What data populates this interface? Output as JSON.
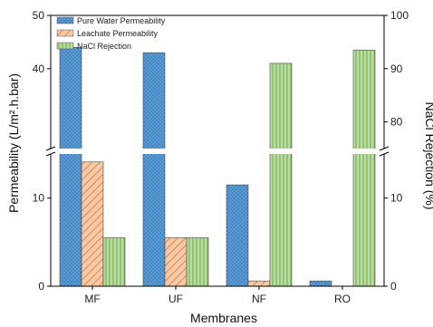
{
  "chart_data": {
    "type": "bar",
    "categories": [
      "MF",
      "UF",
      "NF",
      "RO"
    ],
    "series": [
      {
        "name": "Pure Water Permeability",
        "axis": "left",
        "values": [
          44,
          43,
          11.5,
          0.6
        ],
        "color": "#5b9bd5",
        "pattern": "dots"
      },
      {
        "name": "Leachate Permeability",
        "axis": "left",
        "values": [
          14.1,
          5.5,
          0.6,
          null
        ],
        "color": "#f4b183",
        "pattern": "diag"
      },
      {
        "name": "NaCl Rejection",
        "axis": "right",
        "values": [
          5.5,
          5.5,
          91,
          93.5
        ],
        "color": "#a9d18e",
        "pattern": "vert"
      }
    ],
    "xlabel": "Membranes",
    "ylabel": "Permeability (L/m².h.bar)",
    "ylabel_right": "NaCl Rejection (%)",
    "y_left_segments": [
      {
        "range": [
          0,
          15
        ],
        "ticks": [
          0,
          10
        ]
      },
      {
        "range": [
          25,
          50
        ],
        "ticks": [
          40,
          50
        ]
      }
    ],
    "y_right_segments": [
      {
        "range": [
          0,
          15
        ],
        "ticks": [
          0,
          10
        ]
      },
      {
        "range": [
          75,
          100
        ],
        "ticks": [
          80,
          90,
          100
        ]
      }
    ],
    "axis_break": true,
    "legend_position": "top-left",
    "grid": false
  }
}
